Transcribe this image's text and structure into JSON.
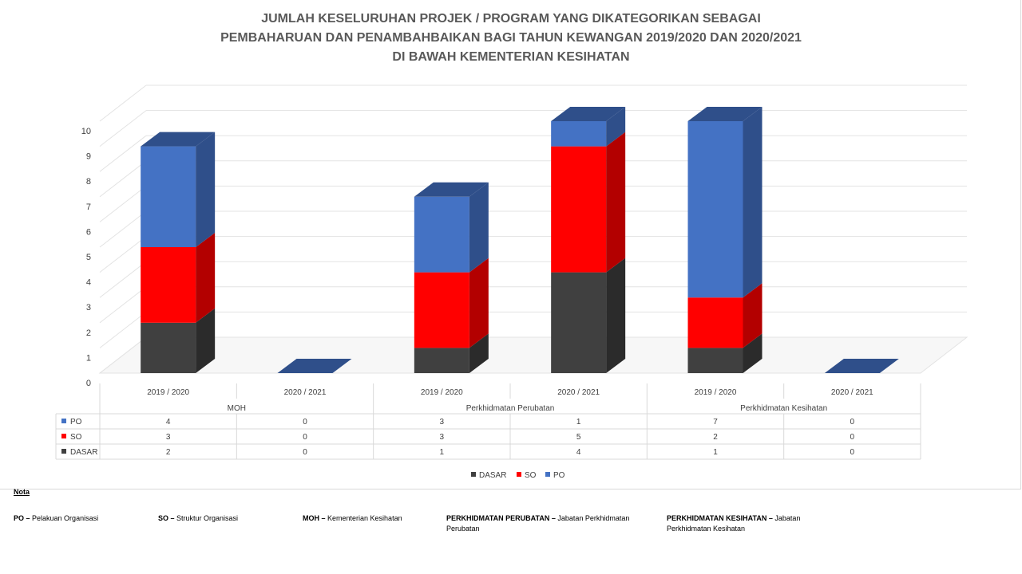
{
  "title_lines": [
    "JUMLAH KESELURUHAN PROJEK / PROGRAM YANG DIKATEGORIKAN SEBAGAI",
    "PEMBAHARUAN DAN PENAMBAHBAIKAN BAGI TAHUN KEWANGAN 2019/2020 DAN 2020/2021",
    "DI BAWAH KEMENTERIAN KESIHATAN"
  ],
  "chart_data": {
    "type": "bar",
    "stacked": true,
    "three_d": true,
    "title": "JUMLAH KESELURUHAN PROJEK / PROGRAM YANG DIKATEGORIKAN SEBAGAI PEMBAHARUAN DAN PENAMBAHBAIKAN BAGI TAHUN KEWANGAN 2019/2020 DAN 2020/2021 DI BAWAH KEMENTERIAN KESIHATAN",
    "groups": [
      "MOH",
      "Perkhidmatan Perubatan",
      "Perkhidmatan Kesihatan"
    ],
    "categories": [
      "2019 / 2020",
      "2020 / 2021",
      "2019 / 2020",
      "2020 / 2021",
      "2019 / 2020",
      "2020 / 2021"
    ],
    "series": [
      {
        "name": "DASAR",
        "color": "#404040",
        "side_color": "#2b2b2b",
        "values": [
          2,
          0,
          1,
          4,
          1,
          0
        ]
      },
      {
        "name": "SO",
        "color": "#ff0000",
        "side_color": "#b30000",
        "values": [
          3,
          0,
          3,
          5,
          2,
          0
        ]
      },
      {
        "name": "PO",
        "color": "#4472c4",
        "side_color": "#2f4f8a",
        "values": [
          4,
          0,
          3,
          1,
          7,
          0
        ]
      }
    ],
    "y_ticks": [
      0,
      1,
      2,
      3,
      4,
      5,
      6,
      7,
      8,
      9,
      10
    ],
    "ylim": [
      0,
      10
    ],
    "grid": true,
    "legend": "bottom",
    "data_table": true,
    "table_row_order": [
      "PO",
      "SO",
      "DASAR"
    ]
  },
  "notes": {
    "heading": "Nota",
    "items": [
      {
        "key": "PO",
        "sep": " – ",
        "text": "Pelakuan Organisasi"
      },
      {
        "key": "SO",
        "sep": " – ",
        "text": "Struktur Organisasi"
      },
      {
        "key": "MOH",
        "sep": " – ",
        "text": "Kementerian Kesihatan"
      },
      {
        "key": "PERKHIDMATAN PERUBATAN",
        "sep": " – ",
        "text": "Jabatan Perkhidmatan Perubatan"
      },
      {
        "key": "PERKHIDMATAN KESIHATAN",
        "sep": " – ",
        "text": "Jabatan Perkhidmatan Kesihatan"
      }
    ]
  }
}
